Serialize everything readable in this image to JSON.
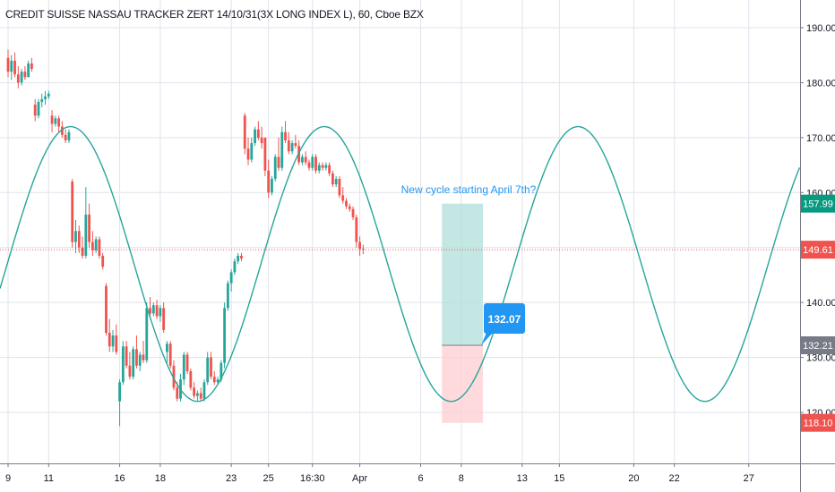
{
  "chart_data": {
    "type": "candlestick",
    "title": "CREDIT SUISSE NASSAU TRACKER ZERT 14/10/31(3X LONG INDEX L), 60, Cboe BZX",
    "y_axis": {
      "range": [
        111,
        195
      ],
      "ticks": [
        120.0,
        130.0,
        140.0,
        150.0,
        160.0,
        170.0,
        180.0,
        190.0
      ],
      "tick_labels": [
        "120.00",
        "130.00",
        "140.00",
        "150.00",
        "160.00",
        "170.00",
        "180.00",
        "190.00"
      ]
    },
    "x_axis": {
      "tick_labels": [
        "9",
        "11",
        "16",
        "18",
        "23",
        "25",
        "16:30",
        "Apr",
        "6",
        "8",
        "13",
        "15",
        "20",
        "22",
        "27"
      ],
      "tick_index": [
        0,
        12,
        33,
        45,
        66,
        77,
        90,
        104,
        122,
        134,
        152,
        163,
        185,
        197,
        219
      ]
    },
    "last_bar_index": 105,
    "grid": true,
    "price_labels": [
      {
        "label": "157.99",
        "value": 157.99,
        "color": "#089981"
      },
      {
        "label": "149.61",
        "value": 149.61,
        "color": "#ef5350"
      },
      {
        "label": "132.21",
        "value": 132.21,
        "color": "#787b86"
      },
      {
        "label": "118.10",
        "value": 118.1,
        "color": "#ef5350"
      }
    ],
    "horizontal_line": {
      "value": 149.61,
      "color": "#ef5350",
      "style": "dotted"
    },
    "candles": [
      [
        0,
        184.5,
        186,
        181,
        182
      ],
      [
        1,
        182,
        185,
        180.5,
        184
      ],
      [
        2,
        184,
        185.5,
        181,
        181.5
      ],
      [
        3,
        181.5,
        183,
        179,
        180
      ],
      [
        4,
        180,
        182.5,
        179.5,
        182
      ],
      [
        5,
        182,
        183,
        180.5,
        181
      ],
      [
        6,
        181,
        184,
        181,
        183.5
      ],
      [
        7,
        183.5,
        184.5,
        182,
        182.5
      ],
      [
        8,
        176,
        177,
        173,
        174
      ],
      [
        9,
        174,
        177,
        173.5,
        176.5
      ],
      [
        10,
        176.5,
        178,
        175.5,
        177
      ],
      [
        11,
        177,
        178.5,
        176,
        177.5
      ],
      [
        12,
        177.5,
        178.5,
        177,
        178
      ],
      [
        13,
        174,
        175,
        171,
        172.5
      ],
      [
        14,
        172.5,
        174,
        172,
        173.5
      ],
      [
        15,
        173.5,
        174,
        171,
        172
      ],
      [
        16,
        172,
        173,
        170,
        170.5
      ],
      [
        17,
        170.5,
        171.5,
        169,
        169.5
      ],
      [
        18,
        169.5,
        171.5,
        169,
        171
      ],
      [
        19,
        162,
        162.5,
        150,
        151
      ],
      [
        20,
        151,
        155,
        149,
        153
      ],
      [
        21,
        153,
        154,
        149,
        150
      ],
      [
        22,
        150,
        152,
        148,
        148.5
      ],
      [
        23,
        148.5,
        161,
        148,
        156
      ],
      [
        24,
        156,
        158,
        150,
        151
      ],
      [
        25,
        151,
        153,
        148.5,
        149.5
      ],
      [
        26,
        149.5,
        152,
        149,
        151.5
      ],
      [
        27,
        151.5,
        152,
        148,
        148.5
      ],
      [
        28,
        148.5,
        149,
        146,
        146.5
      ],
      [
        29,
        143,
        143.5,
        134,
        134.5
      ],
      [
        30,
        134.5,
        137,
        131,
        132
      ],
      [
        31,
        132,
        135,
        131,
        134
      ],
      [
        32,
        134,
        136,
        130.5,
        131
      ],
      [
        33,
        122,
        126,
        117.5,
        125.5
      ],
      [
        34,
        125.5,
        133,
        125,
        132
      ],
      [
        35,
        132,
        133,
        128,
        128.5
      ],
      [
        36,
        128.5,
        131,
        126,
        126.5
      ],
      [
        37,
        126.5,
        132,
        126,
        131.5
      ],
      [
        38,
        131.5,
        134,
        128,
        128.5
      ],
      [
        39,
        128.5,
        131,
        127.5,
        130.5
      ],
      [
        40,
        130.5,
        133,
        129,
        129.5
      ],
      [
        41,
        129.5,
        140,
        129,
        139
      ],
      [
        42,
        139,
        141,
        137,
        138
      ],
      [
        43,
        138,
        140,
        137.5,
        139.5
      ],
      [
        44,
        139.5,
        140.5,
        137,
        137.5
      ],
      [
        45,
        137.5,
        139.5,
        136.5,
        139
      ],
      [
        46,
        139,
        140,
        134.5,
        135
      ],
      [
        47,
        131,
        133,
        129,
        132.5
      ],
      [
        48,
        132.5,
        133,
        128,
        128.5
      ],
      [
        49,
        128.5,
        129.5,
        124,
        124.5
      ],
      [
        50,
        124.5,
        125.5,
        122,
        122.5
      ],
      [
        51,
        122.5,
        127,
        122,
        126
      ],
      [
        52,
        126,
        131,
        125,
        130.5
      ],
      [
        53,
        130.5,
        131,
        127,
        127.5
      ],
      [
        54,
        127.5,
        128,
        124,
        124.5
      ],
      [
        55,
        124.5,
        125.5,
        122.5,
        123
      ],
      [
        56,
        123,
        124,
        122,
        123.5
      ],
      [
        57,
        123.5,
        124.5,
        122,
        122.5
      ],
      [
        58,
        122.5,
        126,
        122,
        125.5
      ],
      [
        59,
        125.5,
        131,
        125,
        130
      ],
      [
        60,
        130,
        131,
        126,
        126.5
      ],
      [
        61,
        126.5,
        127.5,
        125,
        125.5
      ],
      [
        62,
        125.5,
        126.5,
        125,
        126
      ],
      [
        63,
        126,
        129.5,
        125.5,
        129
      ],
      [
        64,
        129,
        140,
        128,
        139
      ],
      [
        65,
        139,
        144,
        138.5,
        143.5
      ],
      [
        66,
        143.5,
        146,
        142,
        145.5
      ],
      [
        67,
        145.5,
        148,
        145,
        147.5
      ],
      [
        68,
        147.5,
        149,
        147,
        148.5
      ],
      [
        69,
        148.5,
        149,
        147.5,
        148
      ],
      [
        70,
        174,
        174.5,
        167,
        168
      ],
      [
        71,
        168,
        170,
        165,
        166
      ],
      [
        72,
        166,
        170,
        165.5,
        169
      ],
      [
        73,
        169,
        172,
        168.5,
        171.5
      ],
      [
        74,
        171.5,
        173,
        169.5,
        170
      ],
      [
        75,
        170,
        172,
        168,
        169
      ],
      [
        76,
        170,
        170,
        163,
        164
      ],
      [
        77,
        164,
        166,
        159,
        160
      ],
      [
        78,
        160,
        163,
        159.5,
        162.5
      ],
      [
        79,
        162.5,
        167,
        162,
        166.5
      ],
      [
        80,
        166.5,
        170,
        164,
        164.5
      ],
      [
        81,
        164.5,
        172,
        164,
        171
      ],
      [
        82,
        171,
        173,
        169,
        169.5
      ],
      [
        83,
        169.5,
        171,
        167,
        167.5
      ],
      [
        84,
        167.5,
        169.5,
        167,
        169
      ],
      [
        85,
        169,
        170.5,
        168,
        168.5
      ],
      [
        86,
        168.5,
        169.5,
        165,
        165.5
      ],
      [
        87,
        165.5,
        167,
        165,
        166.5
      ],
      [
        88,
        166.5,
        167.5,
        165,
        165.5
      ],
      [
        89,
        165.5,
        166,
        164,
        164.5
      ],
      [
        90,
        164.5,
        167,
        164,
        166.5
      ],
      [
        91,
        166.5,
        167,
        163.5,
        164
      ],
      [
        92,
        164,
        165.5,
        163.5,
        165
      ],
      [
        93,
        165,
        165.5,
        164,
        164.5
      ],
      [
        94,
        164.5,
        165.5,
        164,
        165
      ],
      [
        95,
        165,
        165.5,
        163,
        163.5
      ],
      [
        96,
        163.5,
        164,
        161,
        161.5
      ],
      [
        97,
        161.5,
        163,
        161,
        162.5
      ],
      [
        98,
        162.5,
        163,
        159,
        159.5
      ],
      [
        99,
        159.5,
        161,
        158,
        158.5
      ],
      [
        100,
        158.5,
        159,
        157,
        157.5
      ],
      [
        101,
        157.5,
        158,
        156.5,
        157
      ],
      [
        102,
        157,
        157.5,
        155,
        155.5
      ],
      [
        103,
        155.5,
        156,
        150,
        151
      ],
      [
        104,
        151,
        152,
        148.5,
        149.8
      ],
      [
        105,
        149.8,
        150.5,
        148.8,
        149.61
      ]
    ],
    "sine_wave": {
      "color": "#26a69a",
      "center": 147,
      "amplitude": 25,
      "peaks_at_index": [
        18.5,
        90,
        156
      ],
      "troughs_at_index": [
        56,
        123,
        188
      ]
    },
    "annotation": {
      "text": "New cycle starting April 7th?",
      "callout_value": "132.07",
      "callout_color": "#2196f3",
      "entry_price": 132.21,
      "target_price": 157.99,
      "stop_price": 118.1,
      "start_index": 128,
      "end_index": 140,
      "profit_color": "#b2dfdb",
      "loss_color": "#ffcdd2"
    }
  }
}
